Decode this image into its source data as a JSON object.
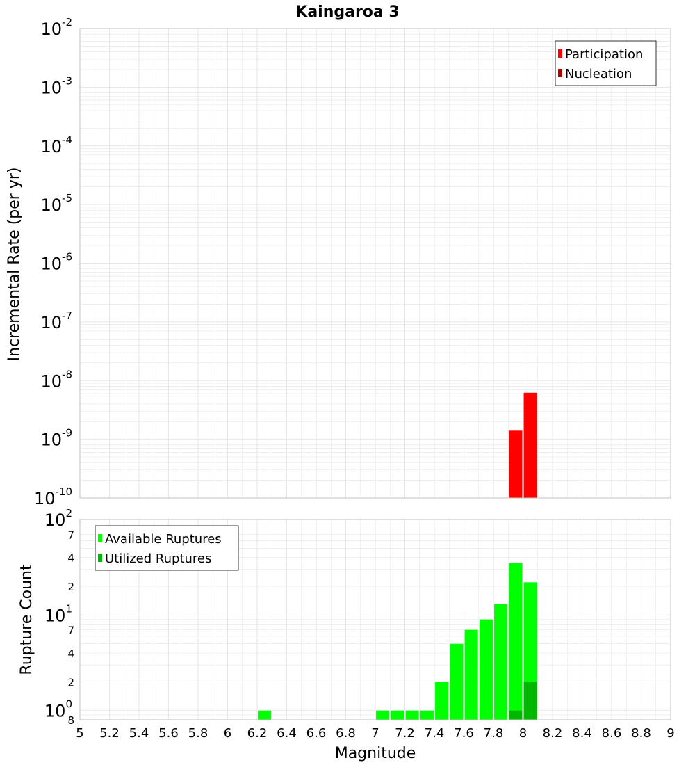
{
  "title": "Kaingaroa 3",
  "colors": {
    "participation": "#ff0000",
    "nucleation": "#b00000",
    "available": "#00ff00",
    "utilized": "#00b800",
    "grid": "#e6e6e6",
    "frame": "#c0c0c0"
  },
  "chart_data": [
    {
      "type": "bar",
      "panel": "top",
      "ylabel": "Incremental Rate (per yr)",
      "yscale": "log",
      "ylim": [
        1e-10,
        0.01
      ],
      "xlim": [
        5,
        9
      ],
      "grid": true,
      "legend_position": "top-right",
      "y_major_ticks": [
        {
          "base": "10",
          "exp": "-10",
          "value": 1e-10
        },
        {
          "base": "10",
          "exp": "-9",
          "value": 1e-09
        },
        {
          "base": "10",
          "exp": "-8",
          "value": 1e-08
        },
        {
          "base": "10",
          "exp": "-7",
          "value": 1e-07
        },
        {
          "base": "10",
          "exp": "-6",
          "value": 1e-06
        },
        {
          "base": "10",
          "exp": "-5",
          "value": 1e-05
        },
        {
          "base": "10",
          "exp": "-4",
          "value": 0.0001
        },
        {
          "base": "10",
          "exp": "-3",
          "value": 0.001
        },
        {
          "base": "10",
          "exp": "-2",
          "value": 0.01
        }
      ],
      "bar_width": 0.09,
      "series": [
        {
          "name": "Participation",
          "color": "#ff0000",
          "x": [
            7.95,
            8.05
          ],
          "values": [
            1.4e-09,
            6.2e-09
          ]
        },
        {
          "name": "Nucleation",
          "color": "#b00000",
          "x": [],
          "values": []
        }
      ]
    },
    {
      "type": "bar",
      "panel": "bottom",
      "xlabel": "Magnitude",
      "ylabel": "Rupture Count",
      "yscale": "log",
      "ylim": [
        0.8,
        100
      ],
      "xlim": [
        5,
        9
      ],
      "grid": true,
      "legend_position": "top-left",
      "x_ticks": [
        "5",
        "5.2",
        "5.4",
        "5.6",
        "5.8",
        "6",
        "6.2",
        "6.4",
        "6.6",
        "6.8",
        "7",
        "7.2",
        "7.4",
        "7.6",
        "7.8",
        "8",
        "8.2",
        "8.4",
        "8.6",
        "8.8",
        "9"
      ],
      "y_major_ticks": [
        {
          "base": "10",
          "exp": "0",
          "value": 1
        },
        {
          "base": "10",
          "exp": "1",
          "value": 10
        },
        {
          "base": "10",
          "exp": "2",
          "value": 100
        }
      ],
      "y_minor_ticks": [
        {
          "label": "8",
          "value": 0.8
        },
        {
          "label": "2",
          "value": 2
        },
        {
          "label": "4",
          "value": 4
        },
        {
          "label": "7",
          "value": 7
        },
        {
          "label": "2",
          "value": 20
        },
        {
          "label": "4",
          "value": 40
        },
        {
          "label": "7",
          "value": 70
        }
      ],
      "bar_width": 0.09,
      "series": [
        {
          "name": "Available Ruptures",
          "color": "#00ff00",
          "x": [
            6.25,
            7.05,
            7.15,
            7.25,
            7.35,
            7.45,
            7.55,
            7.65,
            7.75,
            7.85,
            7.95,
            8.05
          ],
          "values": [
            1,
            1,
            1,
            1,
            1,
            2,
            5,
            7,
            9,
            13,
            35,
            22
          ]
        },
        {
          "name": "Utilized Ruptures",
          "color": "#00b800",
          "x": [
            7.95,
            8.05
          ],
          "values": [
            1,
            2
          ]
        }
      ]
    }
  ]
}
